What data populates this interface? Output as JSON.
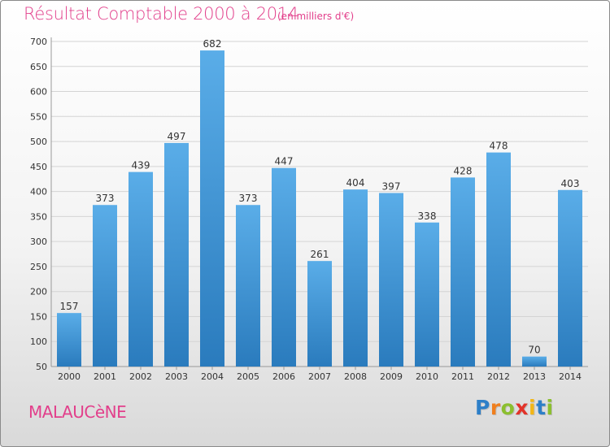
{
  "header": {
    "title": "Résultat Comptable 2000 à 2014",
    "subtitle": "(en milliers d'€)"
  },
  "footer": {
    "city": "MALAUCèNE",
    "logo_letters": [
      {
        "char": "P",
        "color": "#2d7fc8"
      },
      {
        "char": "r",
        "color": "#f07f1e"
      },
      {
        "char": "o",
        "color": "#8cbf2f"
      },
      {
        "char": "x",
        "color": "#e2332a"
      },
      {
        "char": "i",
        "color": "#f2b617"
      },
      {
        "char": "t",
        "color": "#2d7fc8"
      },
      {
        "char": "i",
        "color": "#8cbf2f"
      }
    ]
  },
  "colors": {
    "bar_light": "#5aade8",
    "bar_dark": "#2a7bbd",
    "title": "#e23f8b",
    "grid": "#d4d4d4",
    "axis_text": "#333333"
  },
  "chart_data": {
    "type": "bar",
    "title": "Résultat Comptable 2000 à 2014",
    "ylabel": "(en milliers d'€)",
    "xlabel": "",
    "categories": [
      "2000",
      "2001",
      "2002",
      "2003",
      "2004",
      "2005",
      "2006",
      "2007",
      "2008",
      "2009",
      "2010",
      "2011",
      "2012",
      "2013",
      "2014"
    ],
    "values": [
      157,
      373,
      439,
      497,
      682,
      373,
      447,
      261,
      404,
      397,
      338,
      428,
      478,
      70,
      403
    ],
    "ylim": [
      50,
      700
    ],
    "yticks": [
      50,
      100,
      150,
      200,
      250,
      300,
      350,
      400,
      450,
      500,
      550,
      600,
      650,
      700
    ],
    "grid": true
  }
}
